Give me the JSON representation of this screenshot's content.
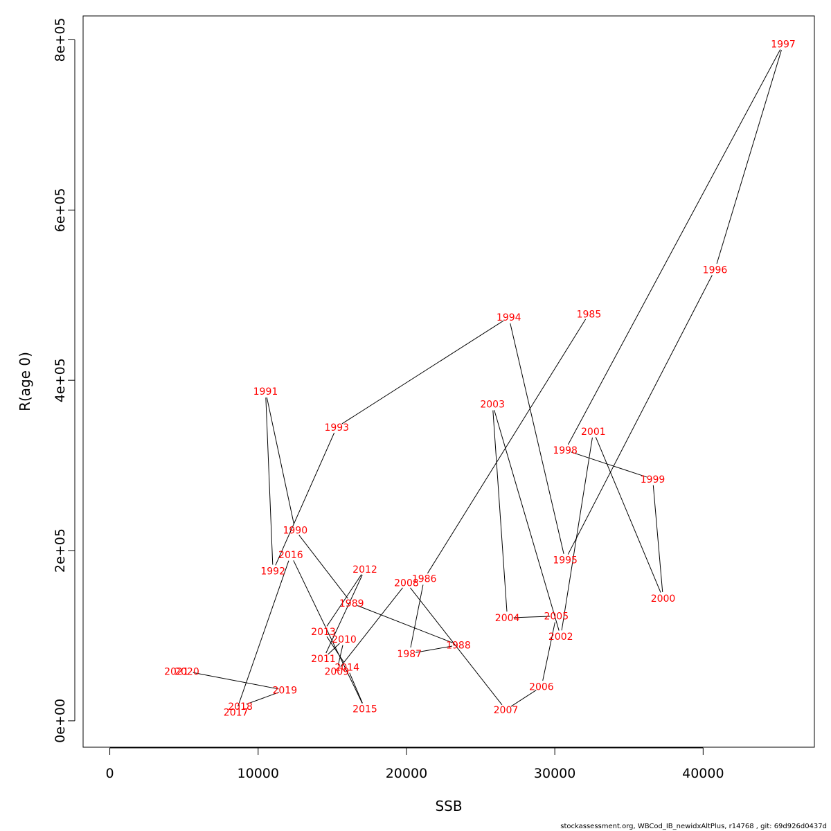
{
  "chart_data": {
    "type": "line",
    "title": "",
    "xlabel": "SSB",
    "ylabel": "R(age 0)",
    "xlim": [
      -1800,
      47500
    ],
    "ylim": [
      -31000,
      828000
    ],
    "xticks": [
      0,
      10000,
      20000,
      30000,
      40000
    ],
    "xtick_labels": [
      "0",
      "10000",
      "20000",
      "30000",
      "40000"
    ],
    "yticks": [
      0,
      200000,
      400000,
      600000,
      800000
    ],
    "ytick_labels": [
      "0e+00",
      "2e+05",
      "4e+05",
      "6e+05",
      "8e+05"
    ],
    "grid": false,
    "line_color": "#000000",
    "label_color": "#ff0000",
    "points": [
      {
        "year": "1985",
        "ssb": 32300,
        "r": 478000
      },
      {
        "year": "1986",
        "ssb": 21200,
        "r": 167000
      },
      {
        "year": "1987",
        "ssb": 20200,
        "r": 79000
      },
      {
        "year": "1988",
        "ssb": 23500,
        "r": 89000
      },
      {
        "year": "1989",
        "ssb": 16300,
        "r": 138000
      },
      {
        "year": "1990",
        "ssb": 12500,
        "r": 224000
      },
      {
        "year": "1991",
        "ssb": 10500,
        "r": 387000
      },
      {
        "year": "1992",
        "ssb": 11000,
        "r": 176000
      },
      {
        "year": "1993",
        "ssb": 15300,
        "r": 345000
      },
      {
        "year": "1994",
        "ssb": 26900,
        "r": 474000
      },
      {
        "year": "1995",
        "ssb": 30700,
        "r": 189000
      },
      {
        "year": "1996",
        "ssb": 40800,
        "r": 530000
      },
      {
        "year": "1997",
        "ssb": 45400,
        "r": 795000
      },
      {
        "year": "1998",
        "ssb": 30700,
        "r": 318000
      },
      {
        "year": "1999",
        "ssb": 36600,
        "r": 284000
      },
      {
        "year": "2000",
        "ssb": 37300,
        "r": 144000
      },
      {
        "year": "2001",
        "ssb": 32600,
        "r": 340000
      },
      {
        "year": "2002",
        "ssb": 30400,
        "r": 99000
      },
      {
        "year": "2003",
        "ssb": 25800,
        "r": 372000
      },
      {
        "year": "2004",
        "ssb": 26800,
        "r": 121000
      },
      {
        "year": "2005",
        "ssb": 30100,
        "r": 123000
      },
      {
        "year": "2006",
        "ssb": 29100,
        "r": 40000
      },
      {
        "year": "2007",
        "ssb": 26700,
        "r": 13000
      },
      {
        "year": "2008",
        "ssb": 20000,
        "r": 162000
      },
      {
        "year": "2009",
        "ssb": 15300,
        "r": 58000
      },
      {
        "year": "2010",
        "ssb": 15800,
        "r": 96000
      },
      {
        "year": "2011",
        "ssb": 14400,
        "r": 73000
      },
      {
        "year": "2012",
        "ssb": 17200,
        "r": 178000
      },
      {
        "year": "2013",
        "ssb": 14400,
        "r": 105000
      },
      {
        "year": "2014",
        "ssb": 16000,
        "r": 63000
      },
      {
        "year": "2015",
        "ssb": 17200,
        "r": 14000
      },
      {
        "year": "2016",
        "ssb": 12200,
        "r": 195000
      },
      {
        "year": "2017",
        "ssb": 8500,
        "r": 10000
      },
      {
        "year": "2018",
        "ssb": 8800,
        "r": 17000
      },
      {
        "year": "2019",
        "ssb": 11800,
        "r": 36000
      },
      {
        "year": "2020",
        "ssb": 5200,
        "r": 58000
      },
      {
        "year": "2021",
        "ssb": 4500,
        "r": 58000
      }
    ]
  },
  "footer": {
    "text": "stockassessment.org, WBCod_IB_newidxAltPlus, r14768 , git: 69d926d0437d"
  }
}
